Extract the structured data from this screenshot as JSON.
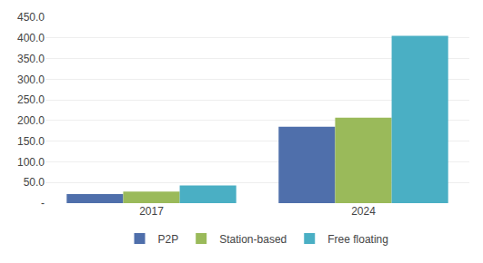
{
  "chart_data": {
    "type": "bar",
    "categories": [
      "2017",
      "2024"
    ],
    "series": [
      {
        "name": "P2P",
        "color": "#4f6fab",
        "values": [
          22.0,
          185.0
        ]
      },
      {
        "name": "Station-based",
        "color": "#9aba5a",
        "values": [
          28.0,
          207.0
        ]
      },
      {
        "name": "Free floating",
        "color": "#4aafc4",
        "values": [
          43.0,
          405.0
        ]
      }
    ],
    "ylim": [
      0,
      450
    ],
    "yticks": [
      {
        "value": 0,
        "label": "-"
      },
      {
        "value": 50.0,
        "label": "50.0"
      },
      {
        "value": 100.0,
        "label": "100.0"
      },
      {
        "value": 150.0,
        "label": "150.0"
      },
      {
        "value": 200.0,
        "label": "200.0"
      },
      {
        "value": 250.0,
        "label": "250.0"
      },
      {
        "value": 300.0,
        "label": "300.0"
      },
      {
        "value": 350.0,
        "label": "350.0"
      },
      {
        "value": 400.0,
        "label": "400.0"
      },
      {
        "value": 450.0,
        "label": "450.0"
      }
    ],
    "grid": true,
    "legend": "bottom"
  }
}
